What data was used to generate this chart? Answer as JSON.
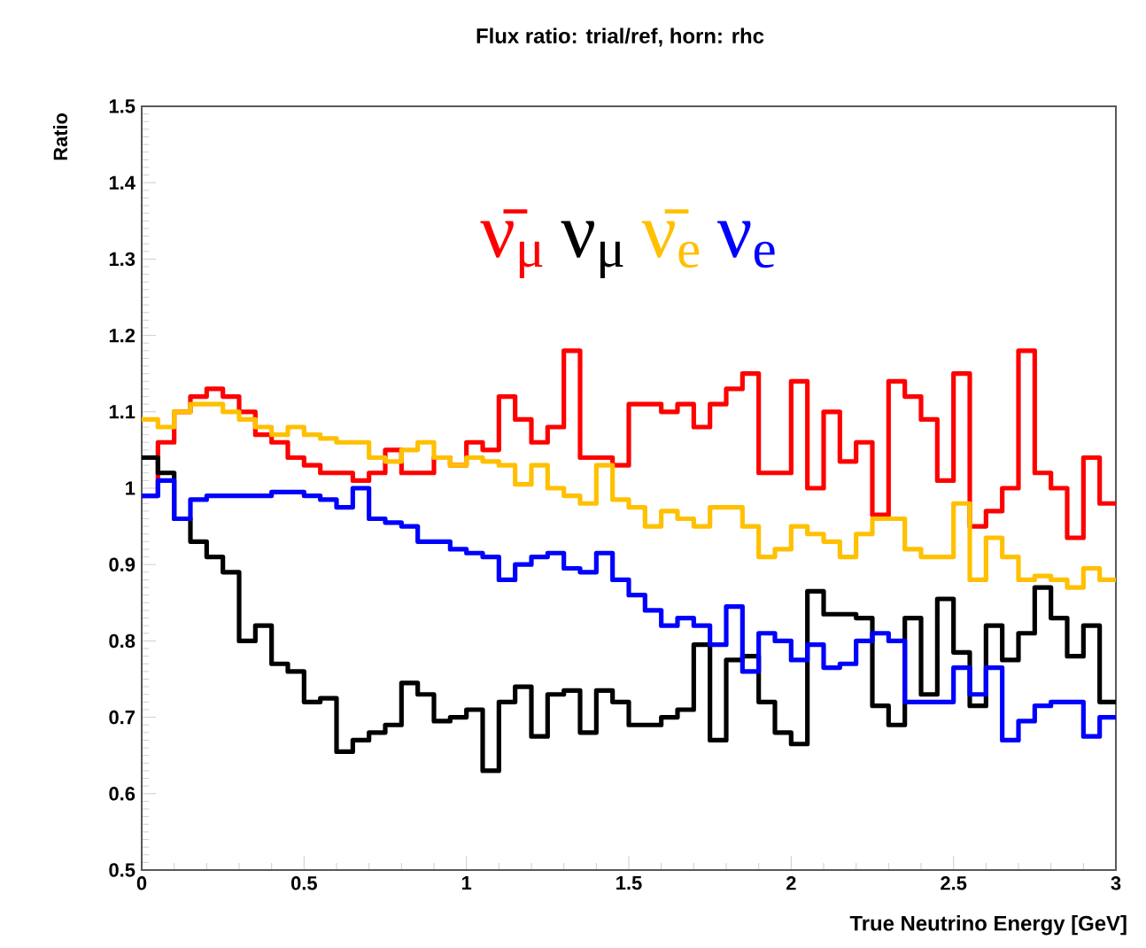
{
  "chart_data": {
    "type": "histogram",
    "title": "Flux ratio: trial/ref, horn: rhc",
    "xlabel": "True Neutrino Energy [GeV]",
    "ylabel": "Ratio",
    "bins": [
      0,
      0.05,
      0.1,
      0.15,
      0.2,
      0.25,
      0.3,
      0.35,
      0.4,
      0.45,
      0.5,
      0.55,
      0.6,
      0.65,
      0.7,
      0.75,
      0.8,
      0.85,
      0.9,
      0.95,
      1,
      1.05,
      1.1,
      1.15,
      1.2,
      1.25,
      1.3,
      1.35,
      1.4,
      1.45,
      1.5,
      1.55,
      1.6,
      1.65,
      1.7,
      1.75,
      1.8,
      1.85,
      1.9,
      1.95,
      2,
      2.05,
      2.1,
      2.15,
      2.2,
      2.25,
      2.3,
      2.35,
      2.4,
      2.45,
      2.5,
      2.55,
      2.6,
      2.65,
      2.7,
      2.75,
      2.8,
      2.85,
      2.9,
      2.95,
      3
    ],
    "series": [
      {
        "name": "ν̄$_{μ}$",
        "color": "#ff0000",
        "values": [
          0.99,
          1.06,
          1.1,
          1.12,
          1.13,
          1.12,
          1.1,
          1.07,
          1.06,
          1.04,
          1.03,
          1.02,
          1.02,
          1.01,
          1.02,
          1.05,
          1.02,
          1.02,
          1.04,
          1.03,
          1.06,
          1.05,
          1.12,
          1.09,
          1.06,
          1.08,
          1.18,
          1.04,
          1.04,
          1.03,
          1.11,
          1.11,
          1.1,
          1.11,
          1.08,
          1.11,
          1.13,
          1.15,
          1.02,
          1.02,
          1.14,
          1.0,
          1.1,
          1.035,
          1.06,
          0.965,
          1.14,
          1.12,
          1.09,
          1.01,
          1.15,
          0.95,
          0.97,
          1.0,
          1.18,
          1.02,
          1.0,
          0.935,
          1.04,
          0.98
        ]
      },
      {
        "name": "ν$_{μ}$",
        "color": "#000000",
        "values": [
          1.04,
          1.02,
          0.96,
          0.93,
          0.91,
          0.89,
          0.8,
          0.82,
          0.77,
          0.76,
          0.72,
          0.725,
          0.655,
          0.67,
          0.68,
          0.69,
          0.745,
          0.73,
          0.695,
          0.7,
          0.71,
          0.63,
          0.72,
          0.74,
          0.675,
          0.73,
          0.735,
          0.68,
          0.735,
          0.72,
          0.69,
          0.69,
          0.7,
          0.71,
          0.795,
          0.67,
          0.775,
          0.78,
          0.72,
          0.68,
          0.665,
          0.865,
          0.835,
          0.835,
          0.83,
          0.715,
          0.69,
          0.83,
          0.73,
          0.855,
          0.785,
          0.715,
          0.82,
          0.775,
          0.81,
          0.87,
          0.83,
          0.78,
          0.82,
          0.72
        ]
      },
      {
        "name": "ν̄$_{e}$",
        "color": "#ffc000",
        "values": [
          1.09,
          1.08,
          1.1,
          1.11,
          1.11,
          1.1,
          1.09,
          1.08,
          1.07,
          1.08,
          1.07,
          1.065,
          1.06,
          1.06,
          1.04,
          1.035,
          1.05,
          1.06,
          1.04,
          1.03,
          1.04,
          1.035,
          1.03,
          1.005,
          1.03,
          1.0,
          0.99,
          0.98,
          1.03,
          0.985,
          0.975,
          0.95,
          0.97,
          0.96,
          0.95,
          0.975,
          0.975,
          0.95,
          0.91,
          0.92,
          0.95,
          0.94,
          0.93,
          0.91,
          0.94,
          0.96,
          0.96,
          0.92,
          0.91,
          0.91,
          0.98,
          0.88,
          0.935,
          0.91,
          0.88,
          0.885,
          0.88,
          0.87,
          0.895,
          0.88
        ]
      },
      {
        "name": "ν$_{e}$",
        "color": "#0000ff",
        "values": [
          0.99,
          1.01,
          0.96,
          0.985,
          0.99,
          0.99,
          0.99,
          0.99,
          0.995,
          0.995,
          0.99,
          0.985,
          0.975,
          1.0,
          0.96,
          0.955,
          0.95,
          0.93,
          0.93,
          0.92,
          0.915,
          0.91,
          0.88,
          0.9,
          0.91,
          0.915,
          0.895,
          0.89,
          0.915,
          0.88,
          0.86,
          0.84,
          0.82,
          0.83,
          0.82,
          0.795,
          0.845,
          0.76,
          0.81,
          0.8,
          0.775,
          0.795,
          0.765,
          0.77,
          0.8,
          0.81,
          0.8,
          0.72,
          0.72,
          0.72,
          0.765,
          0.73,
          0.765,
          0.67,
          0.695,
          0.715,
          0.72,
          0.72,
          0.675,
          0.7
        ]
      }
    ],
    "xlim": [
      0,
      3
    ],
    "ylim": [
      0.5,
      1.5
    ],
    "xticks": [
      0,
      0.5,
      1,
      1.5,
      2,
      2.5,
      3
    ],
    "yticks": [
      0.5,
      0.6,
      0.7,
      0.8,
      0.9,
      1,
      1.1,
      1.2,
      1.3,
      1.4,
      1.5
    ],
    "legend": "top",
    "grid": false
  }
}
